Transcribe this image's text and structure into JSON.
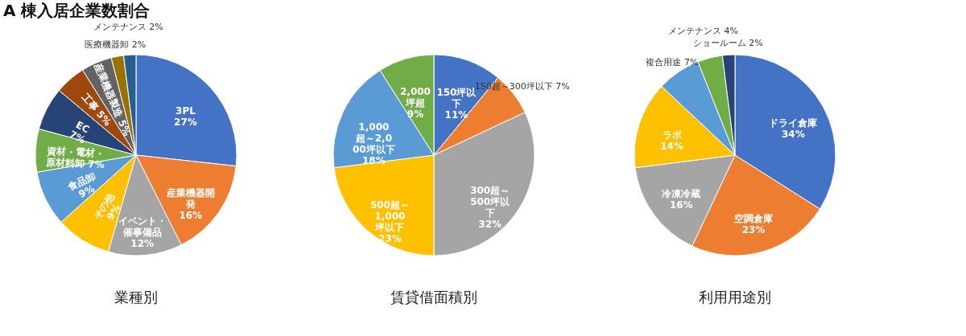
{
  "chart_data": [
    {
      "type": "other",
      "title": "A 棟入居企業数割合"
    },
    {
      "type": "pie",
      "title": "業種別",
      "categories": [
        "3PL",
        "産業機器開発",
        "イベント・催事備品",
        "その他",
        "食品卸",
        "資材・電材・原材料卸",
        "EC",
        "工事",
        "産業機器製造",
        "医療機器卸",
        "メンテナンス"
      ],
      "values": [
        27,
        16,
        12,
        9,
        9,
        7,
        7,
        5,
        5,
        2,
        2
      ],
      "value_labels": [
        "27%",
        "16%",
        "12%",
        "9%",
        "9%",
        "7%",
        "7%",
        "5%",
        "5%",
        "2%",
        "2%"
      ],
      "colors": [
        "#4472c4",
        "#ed7d31",
        "#a5a5a5",
        "#ffc000",
        "#5b9bd5",
        "#70ad47",
        "#264478",
        "#9e480e",
        "#636363",
        "#997300",
        "#255e91"
      ]
    },
    {
      "type": "pie",
      "title": "賃貸借面積別",
      "categories": [
        "150坪以下",
        "150超～300坪以下",
        "300超～500坪以下",
        "500超～1,000坪以下",
        "1,000超～2,000坪以下",
        "2,000坪超"
      ],
      "values": [
        11,
        7,
        32,
        23,
        18,
        9
      ],
      "value_labels": [
        "11%",
        "7%",
        "32%",
        "23%",
        "18%",
        "9%"
      ],
      "colors": [
        "#4472c4",
        "#ed7d31",
        "#a5a5a5",
        "#ffc000",
        "#5b9bd5",
        "#70ad47"
      ]
    },
    {
      "type": "pie",
      "title": "利用用途別",
      "categories": [
        "ドライ倉庫",
        "空調倉庫",
        "冷凍冷蔵",
        "ラボ",
        "複合用途",
        "メンテナンス",
        "ショールーム"
      ],
      "values": [
        34,
        23,
        16,
        14,
        7,
        4,
        2
      ],
      "value_labels": [
        "34%",
        "23%",
        "16%",
        "14%",
        "7%",
        "4%",
        "2%"
      ],
      "colors": [
        "#4472c4",
        "#ed7d31",
        "#a5a5a5",
        "#ffc000",
        "#5b9bd5",
        "#70ad47",
        "#264478"
      ]
    }
  ]
}
